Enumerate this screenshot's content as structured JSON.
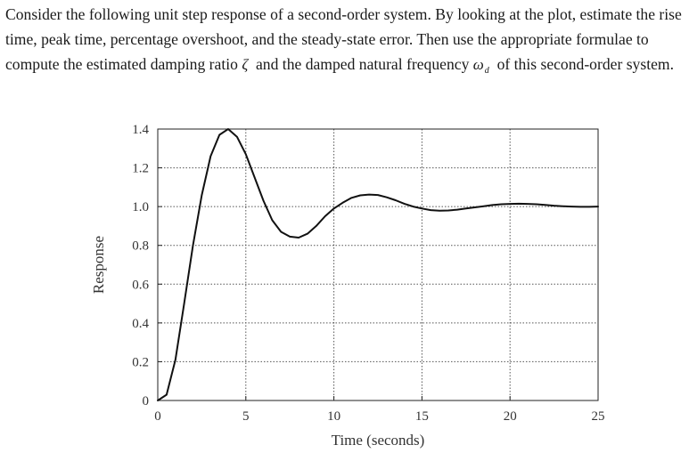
{
  "question": {
    "part1": "Consider the following unit step response of a second-order system. By looking at the plot, estimate the rise time, peak time, percentage overshoot, and the steady-state error. Then use the appropriate formulae to compute the estimated damping ratio",
    "zeta_symbol": "ζ",
    "part2": "and the damped natural frequency",
    "omega_symbol": "ω",
    "omega_subscript": "d",
    "part3": "of this second-order system."
  },
  "chart_data": {
    "type": "line",
    "title": "",
    "xlabel": "Time (seconds)",
    "ylabel": "Response",
    "xlim": [
      0,
      25
    ],
    "ylim": [
      0,
      1.4
    ],
    "xticks": [
      0,
      5,
      10,
      15,
      20,
      25
    ],
    "xtick_labels": [
      "0",
      "5",
      "10",
      "15",
      "20",
      "25"
    ],
    "yticks": [
      0,
      0.2,
      0.4,
      0.6,
      0.8,
      1.0,
      1.2,
      1.4
    ],
    "ytick_labels": [
      "0",
      "0.2",
      "0.4",
      "0.6",
      "0.8",
      "1.0",
      "1.2",
      "1.4"
    ],
    "grid": true,
    "line_color": "#111111",
    "series": [
      {
        "x": [
          0,
          0.5,
          1,
          1.5,
          2,
          2.5,
          3,
          3.5,
          4,
          4.5,
          5,
          5.5,
          6,
          6.5,
          7,
          7.5,
          8,
          8.5,
          9,
          9.5,
          10,
          10.5,
          11,
          11.5,
          12,
          12.5,
          13,
          13.5,
          14,
          14.5,
          15,
          15.5,
          16,
          16.5,
          17,
          17.5,
          18,
          18.5,
          19,
          19.5,
          20,
          20.5,
          21,
          21.5,
          22,
          22.5,
          23,
          23.5,
          24,
          24.5,
          25
        ],
        "y": [
          0,
          0.03,
          0.21,
          0.5,
          0.8,
          1.06,
          1.26,
          1.37,
          1.4,
          1.36,
          1.27,
          1.15,
          1.03,
          0.93,
          0.87,
          0.845,
          0.84,
          0.86,
          0.9,
          0.95,
          0.99,
          1.02,
          1.045,
          1.058,
          1.062,
          1.06,
          1.048,
          1.033,
          1.015,
          1.0,
          0.99,
          0.982,
          0.979,
          0.98,
          0.984,
          0.99,
          0.996,
          1.002,
          1.008,
          1.012,
          1.014,
          1.015,
          1.014,
          1.012,
          1.009,
          1.005,
          1.002,
          1.0,
          0.999,
          0.999,
          1.0
        ]
      }
    ]
  }
}
